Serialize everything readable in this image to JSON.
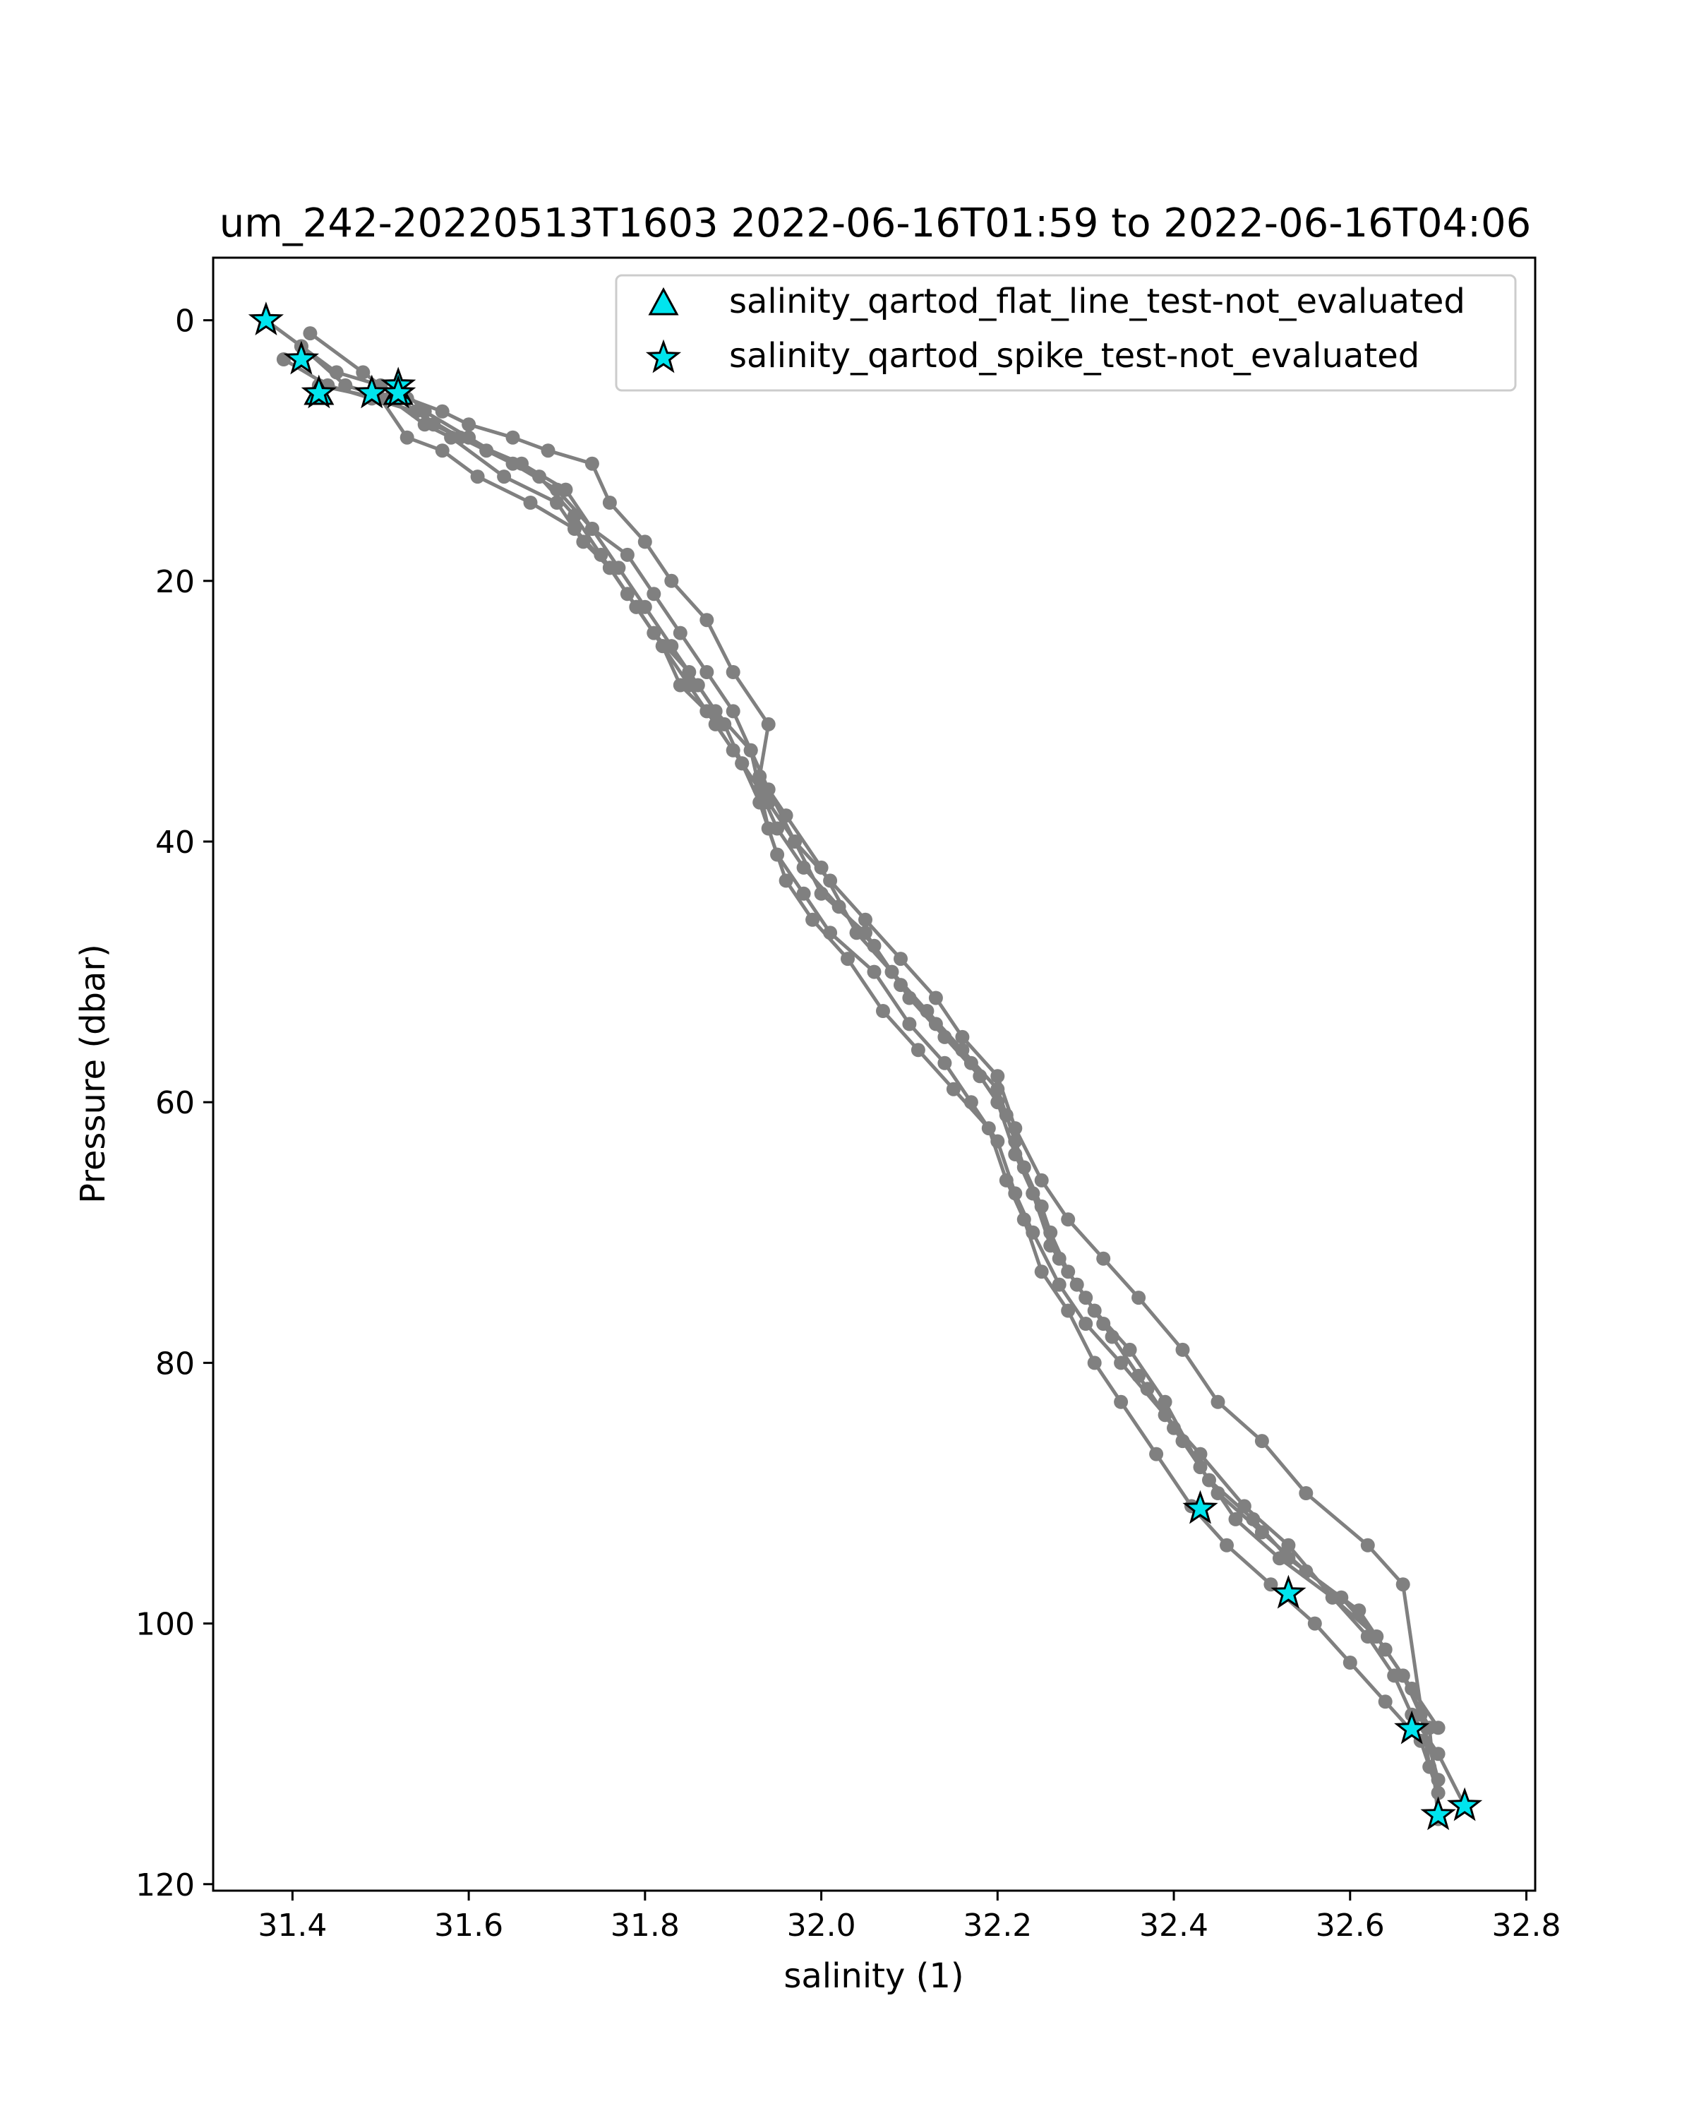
{
  "chart_data": {
    "type": "scatter",
    "title": "um_242-20220513T1603 2022-06-16T01:59 to 2022-06-16T04:06",
    "xlabel": "salinity (1)",
    "ylabel": "Pressure (dbar)",
    "xlim": [
      31.31,
      32.81
    ],
    "ylim": [
      120.5,
      -4.8
    ],
    "y_inverted": true,
    "grid": false,
    "legend_position": "top-right",
    "xticks": [
      31.4,
      31.6,
      31.8,
      32.0,
      32.2,
      32.4,
      32.6,
      32.8
    ],
    "xtick_labels": [
      "31.4",
      "31.6",
      "31.8",
      "32.0",
      "32.2",
      "32.4",
      "32.6",
      "32.8"
    ],
    "yticks": [
      0,
      20,
      40,
      60,
      80,
      100,
      120
    ],
    "ytick_labels": [
      "0",
      "20",
      "40",
      "60",
      "80",
      "100",
      "120"
    ],
    "colors": {
      "profile": "#808080",
      "marker_fill": "#00e5ee",
      "marker_edge": "#000000"
    },
    "profiles": [
      {
        "x": [
          31.37,
          31.41,
          31.45,
          31.5,
          31.53,
          31.57,
          31.6,
          31.65,
          31.69,
          31.74,
          31.76,
          31.8,
          31.83,
          31.87,
          31.9,
          31.94,
          31.93,
          31.96,
          32.0,
          32.04,
          32.08,
          32.12,
          32.16,
          32.2,
          32.22,
          32.24,
          32.26,
          32.28,
          32.31,
          32.35,
          32.39,
          32.43,
          32.47,
          32.52,
          32.58,
          32.62,
          32.65,
          32.67,
          32.7,
          32.73
        ],
        "y": [
          0,
          2,
          4,
          5,
          6,
          7,
          8,
          9,
          10,
          11,
          14,
          17,
          20,
          23,
          27,
          31,
          35,
          38,
          42,
          47,
          50,
          53,
          56,
          59,
          63,
          67,
          70,
          73,
          76,
          79,
          83,
          88,
          92,
          95,
          98,
          101,
          104,
          107,
          110,
          114
        ]
      },
      {
        "x": [
          31.42,
          31.48,
          31.52,
          31.56,
          31.62,
          31.68,
          31.72,
          31.75,
          31.78,
          31.81,
          31.85,
          31.88,
          31.92,
          31.93,
          31.95,
          31.98,
          32.02,
          32.06,
          32.1,
          32.14,
          32.18,
          32.21,
          32.23,
          32.25,
          32.27,
          32.3,
          32.33,
          32.37,
          32.41,
          32.45,
          32.5,
          32.55,
          32.61,
          32.64,
          32.67,
          32.7
        ],
        "y": [
          1,
          4,
          6,
          8,
          10,
          12,
          15,
          18,
          21,
          24,
          27,
          30,
          33,
          36,
          39,
          42,
          45,
          48,
          52,
          55,
          58,
          61,
          65,
          68,
          72,
          75,
          78,
          82,
          86,
          90,
          93,
          96,
          99,
          102,
          105,
          108
        ]
      },
      {
        "x": [
          31.39,
          31.44,
          31.49,
          31.54,
          31.59,
          31.66,
          31.71,
          31.74,
          31.77,
          31.8,
          31.83,
          31.86,
          31.89,
          31.91,
          31.94,
          31.97,
          32.0,
          32.05,
          32.09,
          32.13,
          32.17,
          32.2,
          32.22,
          32.24,
          32.26,
          32.29,
          32.32,
          32.36,
          32.4,
          32.44,
          32.49,
          32.53,
          32.59,
          32.63,
          32.66,
          32.69,
          32.7
        ],
        "y": [
          3,
          5,
          6,
          7,
          9,
          11,
          13,
          16,
          19,
          22,
          25,
          28,
          31,
          34,
          37,
          40,
          44,
          47,
          51,
          54,
          57,
          60,
          64,
          67,
          71,
          74,
          77,
          81,
          85,
          89,
          92,
          95,
          98,
          101,
          104,
          108,
          115
        ]
      },
      {
        "x": [
          31.41,
          31.46,
          31.51,
          31.55,
          31.58,
          31.64,
          31.7,
          31.73,
          31.76,
          31.79,
          31.82,
          31.84,
          31.87,
          31.9,
          31.93,
          31.94,
          31.96,
          31.99,
          32.03,
          32.07,
          32.11,
          32.15,
          32.19,
          32.21,
          32.23,
          32.25,
          32.28,
          32.31,
          32.34,
          32.38,
          32.42,
          32.46,
          32.51,
          32.56,
          32.6,
          32.64,
          32.68,
          32.7
        ],
        "y": [
          2,
          5,
          6,
          8,
          9,
          12,
          14,
          17,
          19,
          22,
          25,
          28,
          30,
          33,
          36,
          39,
          43,
          46,
          49,
          53,
          56,
          59,
          62,
          66,
          69,
          73,
          76,
          80,
          83,
          87,
          91,
          94,
          97,
          100,
          103,
          106,
          109,
          113
        ]
      },
      {
        "x": [
          31.43,
          31.5,
          31.53,
          31.57,
          31.61,
          31.67,
          31.72,
          31.76,
          31.79,
          31.82,
          31.85,
          31.88,
          31.91,
          31.93,
          31.95,
          31.98,
          32.01,
          32.06,
          32.1,
          32.14,
          32.17,
          32.2,
          32.22,
          32.24,
          32.27,
          32.3,
          32.34,
          32.39,
          32.43,
          32.48,
          32.53,
          32.58,
          32.63,
          32.66,
          32.68,
          32.7
        ],
        "y": [
          5,
          6,
          9,
          10,
          12,
          14,
          16,
          19,
          22,
          25,
          28,
          31,
          34,
          37,
          41,
          44,
          47,
          50,
          54,
          57,
          60,
          63,
          67,
          70,
          74,
          77,
          80,
          84,
          87,
          91,
          94,
          98,
          101,
          104,
          107,
          112
        ]
      },
      {
        "x": [
          31.52,
          31.55,
          31.6,
          31.65,
          31.7,
          31.74,
          31.78,
          31.81,
          31.84,
          31.87,
          31.9,
          31.92,
          31.94,
          31.97,
          32.01,
          32.05,
          32.09,
          32.13,
          32.16,
          32.2,
          32.22,
          32.25,
          32.28,
          32.32,
          32.36,
          32.41,
          32.45,
          32.5,
          32.55,
          32.62,
          32.66,
          32.69
        ],
        "y": [
          5,
          7,
          9,
          11,
          13,
          16,
          18,
          21,
          24,
          27,
          30,
          33,
          36,
          40,
          43,
          46,
          49,
          52,
          55,
          58,
          62,
          66,
          69,
          72,
          75,
          79,
          83,
          86,
          90,
          94,
          97,
          111
        ]
      }
    ],
    "series": [
      {
        "name": "salinity_qartod_flat_line_test-not_evaluated",
        "marker": "triangle",
        "x": [
          31.43,
          31.52
        ],
        "y": [
          5.6,
          5.6
        ]
      },
      {
        "name": "salinity_qartod_spike_test-not_evaluated",
        "marker": "star",
        "x": [
          31.37,
          31.41,
          31.43,
          31.49,
          31.52,
          31.52,
          32.43,
          32.53,
          32.67,
          32.7,
          32.73
        ],
        "y": [
          0,
          3,
          5.6,
          5.6,
          5.0,
          5.6,
          91.2,
          97.7,
          108.1,
          114.7,
          114.0
        ]
      }
    ]
  }
}
